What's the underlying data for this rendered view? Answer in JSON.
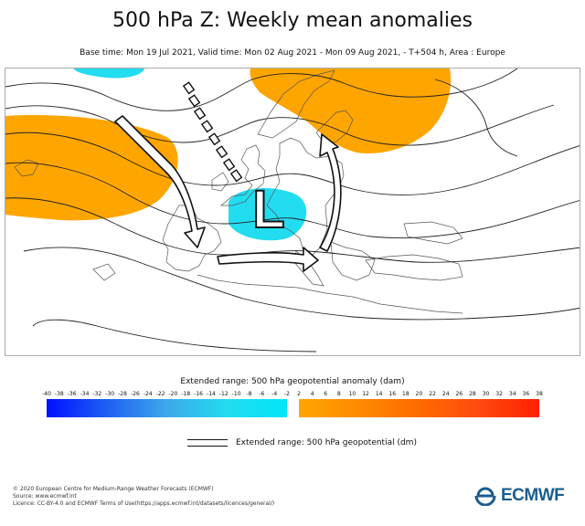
{
  "header": {
    "title": "500 hPa Z: Weekly mean anomalies",
    "subtitle": "Base time: Mon 19 Jul 2021, Valid time: Mon 02 Aug 2021 - Mon 09 Aug 2021, - T+504 h, Area : Europe"
  },
  "map": {
    "low_label": "L",
    "colors": {
      "positive_anomaly": "#ffa500",
      "negative_anomaly": "#22dcf0",
      "coast": "#555555",
      "contour": "#222222"
    }
  },
  "colorbar": {
    "title": "Extended range: 500 hPa geopotential anomaly (dam)",
    "negative_ticks": [
      "-40",
      "-38",
      "-36",
      "-34",
      "-32",
      "-30",
      "-28",
      "-26",
      "-24",
      "-22",
      "-20",
      "-18",
      "-16",
      "-14",
      "-12",
      "-10",
      "-8",
      "-6",
      "-4",
      "-2"
    ],
    "positive_ticks": [
      "2",
      "4",
      "6",
      "8",
      "10",
      "12",
      "14",
      "16",
      "18",
      "20",
      "22",
      "24",
      "26",
      "28",
      "30",
      "32",
      "34",
      "36",
      "38"
    ],
    "negative_colors": [
      "#0010ff",
      "#00e6f8"
    ],
    "positive_colors": [
      "#ffa500",
      "#ff2000"
    ]
  },
  "legend": {
    "contour_label": "Extended range: 500 hPa geopotential (dm)"
  },
  "footer": {
    "line1": "© 2020 European Centre for Medium-Range Weather Forecasts (ECMWF)",
    "line2": "Source: www.ecmwf.int",
    "line3": "Licence: CC-BY-4.0 and ECMWF Terms of Use(https://apps.ecmwf.int/datasets/licences/general/)"
  },
  "logo": {
    "text": "ECMWF",
    "color": "#1a5d8f"
  }
}
